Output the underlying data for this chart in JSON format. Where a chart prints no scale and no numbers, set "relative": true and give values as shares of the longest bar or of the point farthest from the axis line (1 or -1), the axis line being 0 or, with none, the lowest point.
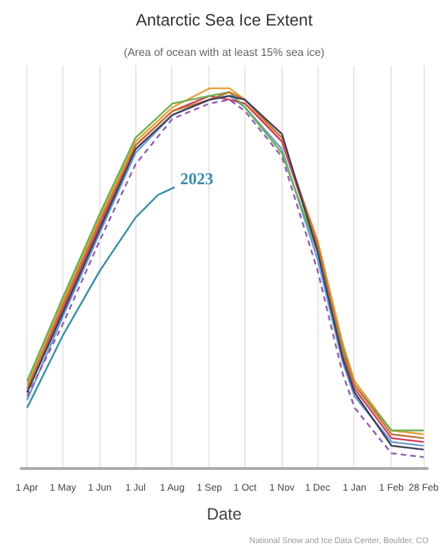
{
  "chart_data": {
    "type": "line",
    "title": "Antarctic Sea Ice Extent",
    "subtitle": "(Area of ocean with at least 15% sea ice)",
    "xlabel": "Date",
    "relative": true,
    "grid": "x",
    "marker": "none",
    "xlim": [
      "2023-03-26",
      "2024-03-03"
    ],
    "xticks": [
      {
        "value": "2023-04-01",
        "label": "1 Apr"
      },
      {
        "value": "2023-05-01",
        "label": "1 May"
      },
      {
        "value": "2023-06-01",
        "label": "1 Jun"
      },
      {
        "value": "2023-07-01",
        "label": "1 Jul"
      },
      {
        "value": "2023-08-01",
        "label": "1 Aug"
      },
      {
        "value": "2023-09-01",
        "label": "1 Sep"
      },
      {
        "value": "2023-10-01",
        "label": "1 Oct"
      },
      {
        "value": "2023-11-01",
        "label": "1 Nov"
      },
      {
        "value": "2023-12-01",
        "label": "1 Dec"
      },
      {
        "value": "2024-01-01",
        "label": "1 Jan"
      },
      {
        "value": "2024-02-01",
        "label": "1 Feb"
      },
      {
        "value": "2024-02-28",
        "label": "28 Feb"
      }
    ],
    "x": [
      "2023-04-01",
      "2023-05-01",
      "2023-06-01",
      "2023-07-01",
      "2023-08-01",
      "2023-09-01",
      "2023-09-18",
      "2023-10-01",
      "2023-11-01",
      "2023-12-01",
      "2023-12-22",
      "2024-01-01",
      "2024-02-01",
      "2024-02-28"
    ],
    "annotations": [
      "National Snow and Ice Data Center, Boulder, CO"
    ],
    "series": [
      {
        "color": "#e8a040",
        "values": [
          0.22,
          0.44,
          0.66,
          0.86,
          0.95,
          1.0,
          1.0,
          0.97,
          0.86,
          0.6,
          0.33,
          0.23,
          0.1,
          0.09
        ]
      },
      {
        "color": "#6a9fd0",
        "values": [
          0.18,
          0.4,
          0.62,
          0.83,
          0.93,
          0.97,
          0.98,
          0.95,
          0.84,
          0.55,
          0.28,
          0.19,
          0.07,
          0.06
        ]
      },
      {
        "color": "#d04060",
        "values": [
          0.2,
          0.42,
          0.64,
          0.85,
          0.94,
          0.98,
          0.97,
          0.96,
          0.86,
          0.58,
          0.3,
          0.21,
          0.08,
          0.07
        ]
      },
      {
        "color": "#70b050",
        "values": [
          0.23,
          0.45,
          0.67,
          0.87,
          0.96,
          0.98,
          0.99,
          0.95,
          0.83,
          0.57,
          0.32,
          0.22,
          0.1,
          0.1
        ]
      },
      {
        "color": "#9060b0",
        "line_style": "dashed",
        "values": [
          0.19,
          0.38,
          0.6,
          0.8,
          0.92,
          0.96,
          0.97,
          0.94,
          0.82,
          0.52,
          0.25,
          0.16,
          0.04,
          0.03
        ]
      },
      {
        "color": "#c07838",
        "values": [
          0.21,
          0.43,
          0.65,
          0.85,
          0.94,
          0.97,
          0.99,
          0.97,
          0.87,
          0.59,
          0.31,
          0.22,
          0.09,
          0.08
        ]
      },
      {
        "color": "#404060",
        "values": [
          0.2,
          0.41,
          0.63,
          0.84,
          0.93,
          0.97,
          0.98,
          0.97,
          0.88,
          0.57,
          0.29,
          0.2,
          0.06,
          0.05
        ]
      },
      {
        "name": "2023",
        "color": "#3a8fa8",
        "x": [
          "2023-04-01",
          "2023-05-01",
          "2023-06-01",
          "2023-07-01",
          "2023-07-20",
          "2023-08-03"
        ],
        "values": [
          0.16,
          0.35,
          0.52,
          0.66,
          0.72,
          0.74
        ]
      }
    ]
  }
}
